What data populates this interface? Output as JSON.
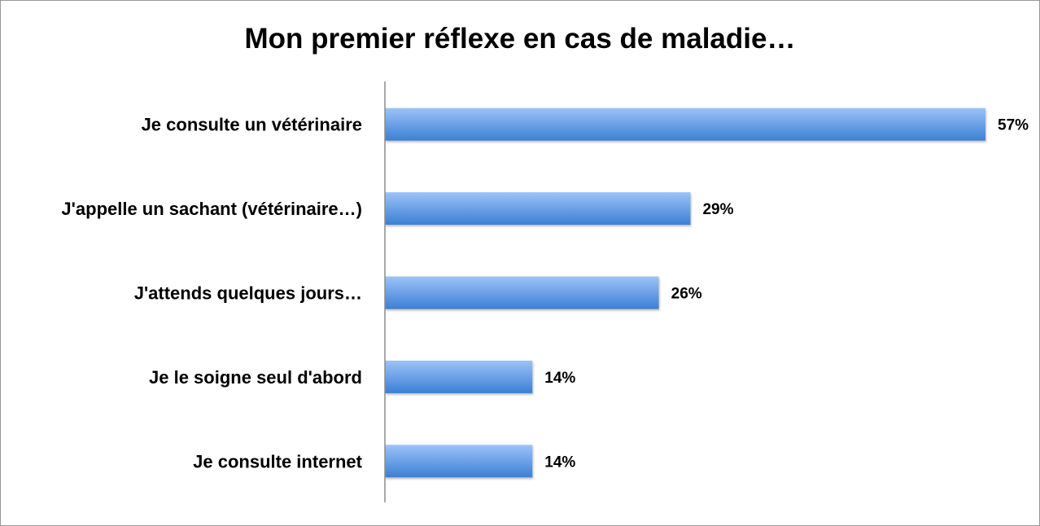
{
  "chart_data": {
    "type": "bar",
    "orientation": "horizontal",
    "title": "Mon premier réflexe en cas de maladie…",
    "categories": [
      "Je consulte un vétérinaire",
      "J'appelle un sachant (vétérinaire…)",
      "J'attends quelques jours…",
      "Je le soigne seul d'abord",
      "Je consulte internet"
    ],
    "values": [
      57,
      29,
      26,
      14,
      14
    ],
    "value_labels": [
      "57%",
      "29%",
      "26%",
      "14%",
      "14%"
    ],
    "xlim": [
      0,
      57
    ],
    "grid": false,
    "legend": "none",
    "bar_color_top": "#9cc3f7",
    "bar_color_bottom": "#3c7fd4",
    "axis_color": "#8c8c8c"
  }
}
